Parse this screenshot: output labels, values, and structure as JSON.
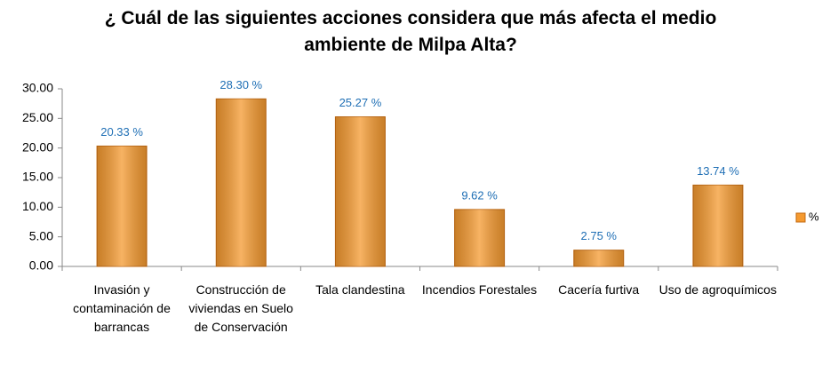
{
  "chart_data": {
    "type": "bar",
    "title": "¿ Cuál de las siguientes acciones considera que más afecta el medio ambiente de Milpa Alta?",
    "categories": [
      "Invasión y contaminación de barrancas",
      "Construcción de viviendas en Suelo de Conservación",
      "Tala clandestina",
      "Incendios Forestales",
      "Cacería furtiva",
      "Uso de agroquímicos"
    ],
    "series": [
      {
        "name": "%",
        "color": "#f59a30",
        "values": [
          20.33,
          28.3,
          25.27,
          9.62,
          2.75,
          13.74
        ],
        "value_labels": [
          "20.33 %",
          "28.30 %",
          "25.27 %",
          "9.62 %",
          "2.75 %",
          "13.74 %"
        ]
      }
    ],
    "ylim": [
      0,
      30
    ],
    "yticks": [
      {
        "value": 0,
        "label": "0.00"
      },
      {
        "value": 5,
        "label": "5.00"
      },
      {
        "value": 10,
        "label": "10.00"
      },
      {
        "value": 15,
        "label": "15.00"
      },
      {
        "value": 20,
        "label": "20.00"
      },
      {
        "value": 25,
        "label": "25.00"
      },
      {
        "value": 30,
        "label": "30.00"
      }
    ],
    "grid": false,
    "legend": "right"
  }
}
